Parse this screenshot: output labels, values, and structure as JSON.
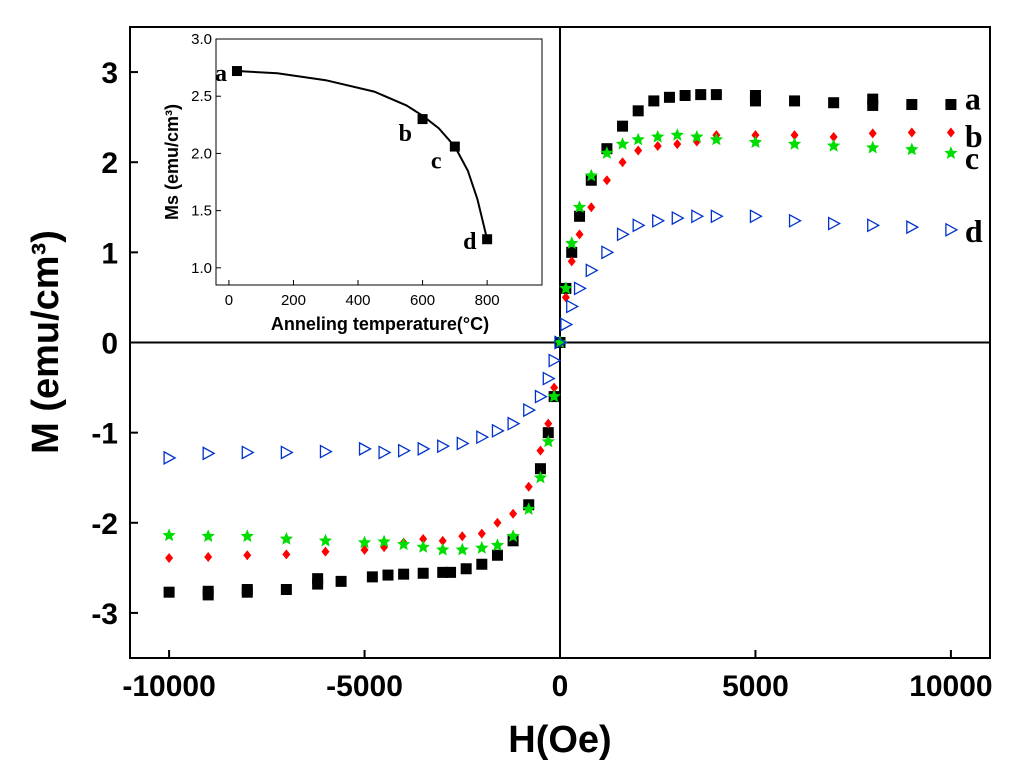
{
  "chart_data": [
    {
      "type": "scatter",
      "xlabel": "H(Oe)",
      "ylabel": "M (emu/cm³)",
      "xlim": [
        -11000,
        11000
      ],
      "ylim": [
        -3.5,
        3.5
      ],
      "xticks": [
        -10000,
        -5000,
        0,
        5000,
        10000
      ],
      "xtick_labels": [
        "-10000",
        "-5000",
        "0",
        "5000",
        "10000"
      ],
      "yticks": [
        -3,
        -2,
        -1,
        0,
        1,
        2,
        3
      ],
      "ytick_labels": [
        "-3",
        "-2",
        "-1",
        "0",
        "1",
        "2",
        "3"
      ],
      "series": [
        {
          "name": "a",
          "label": "a",
          "color": "#000000",
          "marker": "square",
          "ms": 2.72,
          "points": [
            [
              -10000,
              -2.77
            ],
            [
              -9000,
              -2.8
            ],
            [
              -9000,
              -2.76
            ],
            [
              -8000,
              -2.77
            ],
            [
              -8000,
              -2.74
            ],
            [
              -7000,
              -2.74
            ],
            [
              -6200,
              -2.68
            ],
            [
              -6200,
              -2.62
            ],
            [
              -5600,
              -2.65
            ],
            [
              -4800,
              -2.6
            ],
            [
              -4400,
              -2.58
            ],
            [
              -4000,
              -2.57
            ],
            [
              -3500,
              -2.56
            ],
            [
              -3000,
              -2.55
            ],
            [
              -2800,
              -2.55
            ],
            [
              -2400,
              -2.51
            ],
            [
              -2000,
              -2.46
            ],
            [
              -1600,
              -2.36
            ],
            [
              -1200,
              -2.2
            ],
            [
              -800,
              -1.8
            ],
            [
              -500,
              -1.4
            ],
            [
              -300,
              -1.0
            ],
            [
              -150,
              -0.6
            ],
            [
              0,
              0
            ],
            [
              150,
              0.6
            ],
            [
              300,
              1.0
            ],
            [
              500,
              1.4
            ],
            [
              800,
              1.8
            ],
            [
              1200,
              2.15
            ],
            [
              1600,
              2.4
            ],
            [
              2000,
              2.57
            ],
            [
              2400,
              2.68
            ],
            [
              2800,
              2.72
            ],
            [
              3200,
              2.74
            ],
            [
              3600,
              2.75
            ],
            [
              4000,
              2.75
            ],
            [
              5000,
              2.74
            ],
            [
              5000,
              2.68
            ],
            [
              6000,
              2.68
            ],
            [
              7000,
              2.66
            ],
            [
              8000,
              2.7
            ],
            [
              8000,
              2.63
            ],
            [
              9000,
              2.64
            ],
            [
              10000,
              2.64
            ]
          ]
        },
        {
          "name": "b",
          "label": "b",
          "color": "#ff0000",
          "marker": "diamond",
          "ms": 2.3,
          "points": [
            [
              -10000,
              -2.39
            ],
            [
              -9000,
              -2.38
            ],
            [
              -8000,
              -2.36
            ],
            [
              -7000,
              -2.35
            ],
            [
              -6000,
              -2.32
            ],
            [
              -5000,
              -2.3
            ],
            [
              -4500,
              -2.27
            ],
            [
              -4000,
              -2.22
            ],
            [
              -3500,
              -2.18
            ],
            [
              -3000,
              -2.2
            ],
            [
              -2500,
              -2.15
            ],
            [
              -2000,
              -2.12
            ],
            [
              -1600,
              -2.0
            ],
            [
              -1200,
              -1.9
            ],
            [
              -800,
              -1.6
            ],
            [
              -500,
              -1.2
            ],
            [
              -300,
              -0.9
            ],
            [
              -150,
              -0.5
            ],
            [
              0,
              0
            ],
            [
              150,
              0.5
            ],
            [
              300,
              0.9
            ],
            [
              500,
              1.2
            ],
            [
              800,
              1.5
            ],
            [
              1200,
              1.8
            ],
            [
              1600,
              2.0
            ],
            [
              2000,
              2.13
            ],
            [
              2500,
              2.18
            ],
            [
              3000,
              2.2
            ],
            [
              3500,
              2.23
            ],
            [
              4000,
              2.3
            ],
            [
              5000,
              2.3
            ],
            [
              6000,
              2.3
            ],
            [
              7000,
              2.28
            ],
            [
              8000,
              2.32
            ],
            [
              9000,
              2.33
            ],
            [
              10000,
              2.33
            ]
          ]
        },
        {
          "name": "c",
          "label": "c",
          "color": "#00dd00",
          "marker": "star",
          "ms": 2.06,
          "points": [
            [
              -10000,
              -2.14
            ],
            [
              -9000,
              -2.15
            ],
            [
              -8000,
              -2.15
            ],
            [
              -7000,
              -2.18
            ],
            [
              -6000,
              -2.2
            ],
            [
              -5000,
              -2.22
            ],
            [
              -4500,
              -2.21
            ],
            [
              -4000,
              -2.24
            ],
            [
              -3500,
              -2.27
            ],
            [
              -3000,
              -2.3
            ],
            [
              -2500,
              -2.3
            ],
            [
              -2000,
              -2.28
            ],
            [
              -1600,
              -2.25
            ],
            [
              -1200,
              -2.15
            ],
            [
              -800,
              -1.85
            ],
            [
              -500,
              -1.5
            ],
            [
              -300,
              -1.1
            ],
            [
              -150,
              -0.6
            ],
            [
              0,
              0
            ],
            [
              150,
              0.6
            ],
            [
              300,
              1.1
            ],
            [
              500,
              1.5
            ],
            [
              800,
              1.85
            ],
            [
              1200,
              2.1
            ],
            [
              1600,
              2.2
            ],
            [
              2000,
              2.25
            ],
            [
              2500,
              2.28
            ],
            [
              3000,
              2.3
            ],
            [
              3500,
              2.28
            ],
            [
              4000,
              2.25
            ],
            [
              5000,
              2.22
            ],
            [
              6000,
              2.2
            ],
            [
              7000,
              2.18
            ],
            [
              8000,
              2.16
            ],
            [
              9000,
              2.14
            ],
            [
              10000,
              2.1
            ]
          ]
        },
        {
          "name": "d",
          "label": "d",
          "color": "#0033cc",
          "marker": "triangle-right",
          "ms": 1.25,
          "points": [
            [
              -10000,
              -1.28
            ],
            [
              -9000,
              -1.23
            ],
            [
              -8000,
              -1.22
            ],
            [
              -7000,
              -1.22
            ],
            [
              -6000,
              -1.21
            ],
            [
              -5000,
              -1.18
            ],
            [
              -4500,
              -1.22
            ],
            [
              -4000,
              -1.2
            ],
            [
              -3500,
              -1.18
            ],
            [
              -3000,
              -1.15
            ],
            [
              -2500,
              -1.12
            ],
            [
              -2000,
              -1.05
            ],
            [
              -1600,
              -0.98
            ],
            [
              -1200,
              -0.9
            ],
            [
              -800,
              -0.75
            ],
            [
              -500,
              -0.6
            ],
            [
              -300,
              -0.4
            ],
            [
              -150,
              -0.2
            ],
            [
              0,
              0
            ],
            [
              150,
              0.2
            ],
            [
              300,
              0.4
            ],
            [
              500,
              0.6
            ],
            [
              800,
              0.8
            ],
            [
              1200,
              1.0
            ],
            [
              1600,
              1.2
            ],
            [
              2000,
              1.3
            ],
            [
              2500,
              1.35
            ],
            [
              3000,
              1.38
            ],
            [
              3500,
              1.4
            ],
            [
              4000,
              1.4
            ],
            [
              5000,
              1.4
            ],
            [
              6000,
              1.35
            ],
            [
              7000,
              1.32
            ],
            [
              8000,
              1.3
            ],
            [
              9000,
              1.28
            ],
            [
              10000,
              1.25
            ]
          ]
        }
      ]
    },
    {
      "type": "scatter",
      "inset": true,
      "xlabel": "Anneling temperature(°C)",
      "ylabel": "Ms (emu/cm³)",
      "xlim": [
        -40,
        970
      ],
      "ylim": [
        0.85,
        3.0
      ],
      "xticks": [
        0,
        200,
        400,
        600,
        800
      ],
      "xtick_labels": [
        "0",
        "200",
        "400",
        "600",
        "800"
      ],
      "yticks": [
        1.0,
        1.5,
        2.0,
        2.5,
        3.0
      ],
      "ytick_labels": [
        "1.0",
        "1.5",
        "2.0",
        "2.5",
        "3.0"
      ],
      "points": [
        {
          "label": "a",
          "x": 25,
          "y": 2.72
        },
        {
          "label": "b",
          "x": 600,
          "y": 2.3
        },
        {
          "label": "c",
          "x": 700,
          "y": 2.06
        },
        {
          "label": "d",
          "x": 800,
          "y": 1.25
        }
      ],
      "fit_curve": [
        [
          25,
          2.72
        ],
        [
          150,
          2.7
        ],
        [
          300,
          2.64
        ],
        [
          450,
          2.54
        ],
        [
          550,
          2.42
        ],
        [
          600,
          2.33
        ],
        [
          650,
          2.22
        ],
        [
          700,
          2.06
        ],
        [
          740,
          1.85
        ],
        [
          770,
          1.6
        ],
        [
          800,
          1.25
        ]
      ]
    }
  ]
}
